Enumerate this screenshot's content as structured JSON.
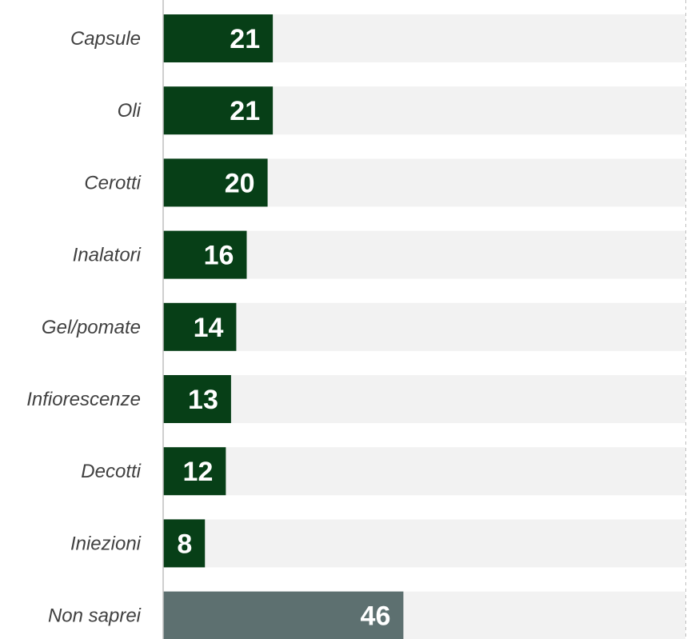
{
  "chart_data": {
    "type": "bar",
    "orientation": "horizontal",
    "categories": [
      "Capsule",
      "Oli",
      "Cerotti",
      "Inalatori",
      "Gel/pomate",
      "Infiorescenze",
      "Decotti",
      "Iniezioni",
      "Non saprei"
    ],
    "values": [
      21,
      21,
      20,
      16,
      14,
      13,
      12,
      8,
      46
    ],
    "data_labels": [
      "21",
      "21",
      "20",
      "16",
      "14",
      "13",
      "12",
      "8",
      "46"
    ],
    "xlim": [
      0,
      100
    ],
    "grid": false,
    "legend": "none"
  },
  "colors": {
    "bar": "#073f17",
    "bar_highlight": "#5d7070",
    "track": "#f2f2f2",
    "axis": "#bfbfbf",
    "label_text": "#404040",
    "value_text": "#ffffff"
  }
}
